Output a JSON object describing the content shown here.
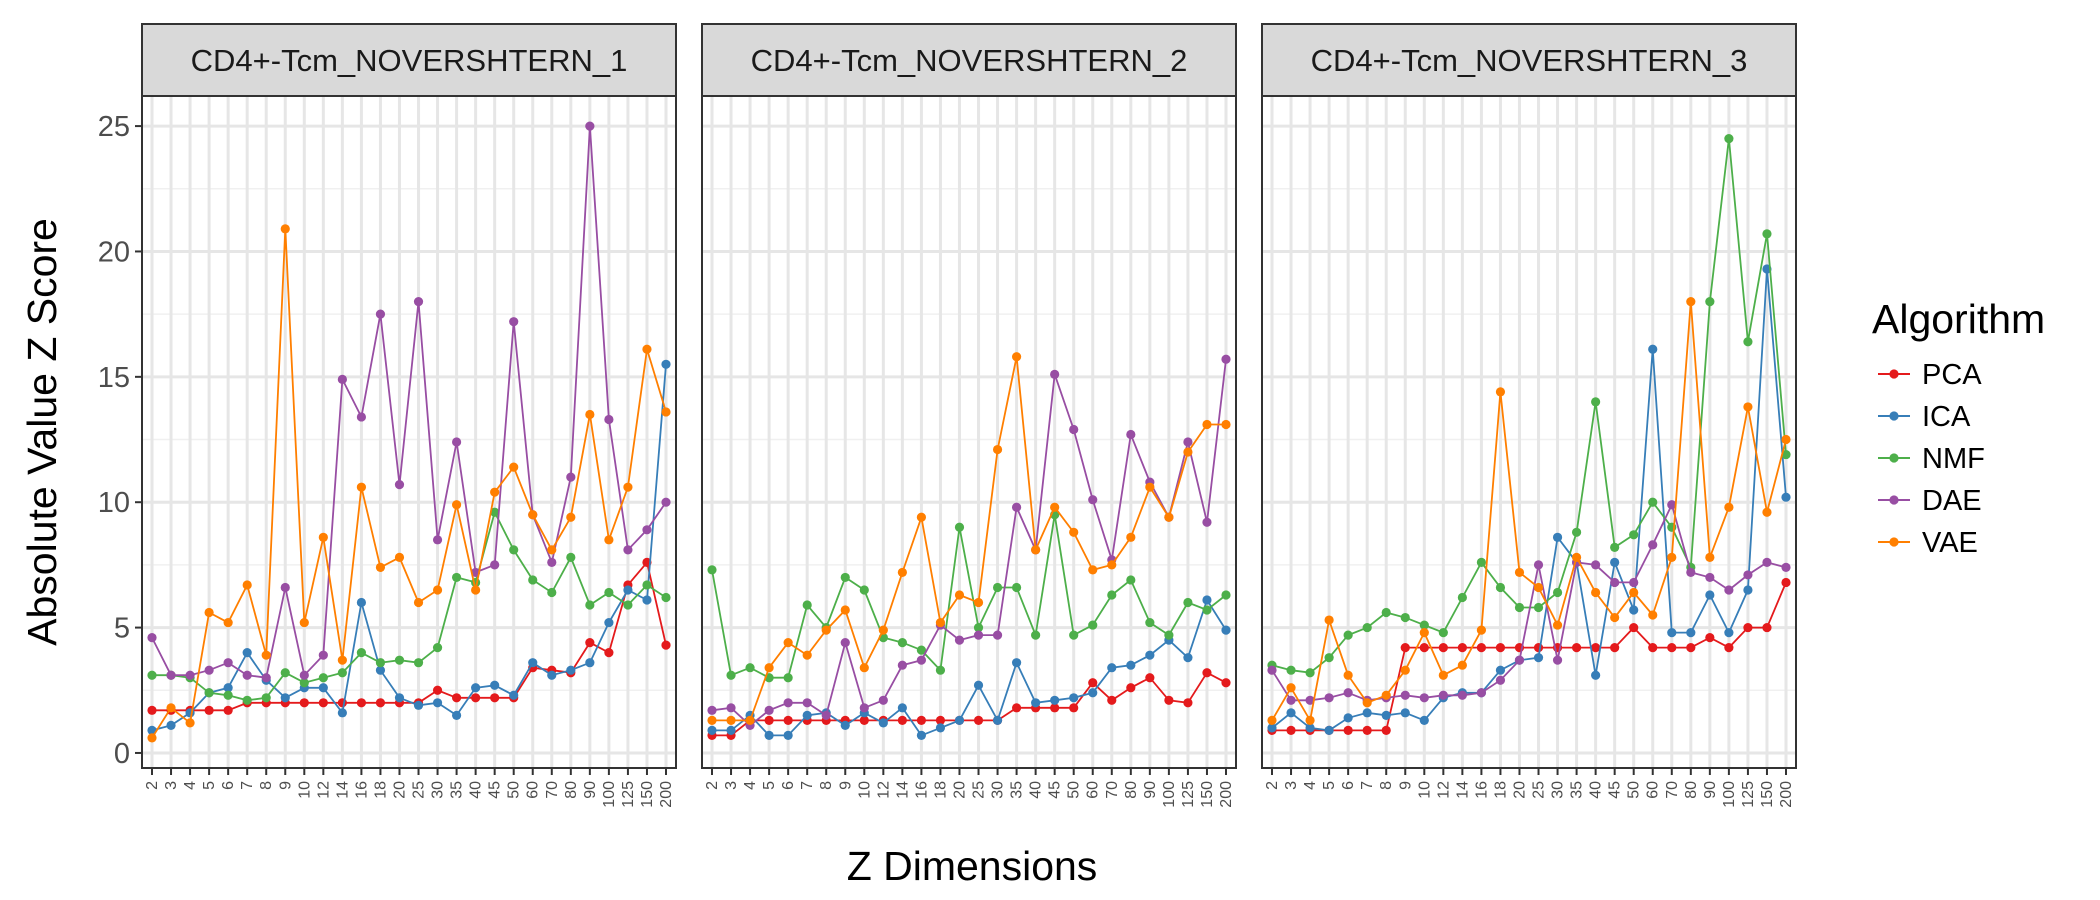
{
  "chart_data": {
    "type": "line",
    "ylabel": "Absolute Value Z Score",
    "xlabel": "Z Dimensions",
    "ylim": [
      -0.6,
      26.2
    ],
    "yticks": [
      0,
      5,
      10,
      15,
      20,
      25
    ],
    "grid": true,
    "legend_position": "right",
    "legend_title": "Algorithm",
    "categories": [
      "2",
      "3",
      "4",
      "5",
      "6",
      "7",
      "8",
      "9",
      "10",
      "12",
      "14",
      "16",
      "18",
      "20",
      "25",
      "30",
      "35",
      "40",
      "45",
      "50",
      "60",
      "70",
      "80",
      "90",
      "100",
      "125",
      "150",
      "200"
    ],
    "series_meta": [
      {
        "name": "PCA",
        "color": "#e41a1c"
      },
      {
        "name": "ICA",
        "color": "#377eb8"
      },
      {
        "name": "NMF",
        "color": "#4daf4a"
      },
      {
        "name": "DAE",
        "color": "#984ea3"
      },
      {
        "name": "VAE",
        "color": "#ff7f00"
      }
    ],
    "panels": [
      {
        "title": "CD4+-Tcm_NOVERSHTERN_1",
        "series": {
          "PCA": [
            1.7,
            1.7,
            1.7,
            1.7,
            1.7,
            2.0,
            2.0,
            2.0,
            2.0,
            2.0,
            2.0,
            2.0,
            2.0,
            2.0,
            2.0,
            2.5,
            2.2,
            2.2,
            2.2,
            2.2,
            3.4,
            3.3,
            3.2,
            4.4,
            4.0,
            6.7,
            7.6,
            4.3
          ],
          "ICA": [
            0.9,
            1.1,
            1.6,
            2.4,
            2.6,
            4.0,
            2.9,
            2.2,
            2.6,
            2.6,
            1.6,
            6.0,
            3.3,
            2.2,
            1.9,
            2.0,
            1.5,
            2.6,
            2.7,
            2.3,
            3.6,
            3.1,
            3.3,
            3.6,
            5.2,
            6.5,
            6.1,
            15.5
          ],
          "NMF": [
            3.1,
            3.1,
            3.0,
            2.4,
            2.3,
            2.1,
            2.2,
            3.2,
            2.8,
            3.0,
            3.2,
            4.0,
            3.6,
            3.7,
            3.6,
            4.2,
            7.0,
            6.8,
            9.6,
            8.1,
            6.9,
            6.4,
            7.8,
            5.9,
            6.4,
            5.9,
            6.7,
            6.2
          ],
          "DAE": [
            4.6,
            3.1,
            3.1,
            3.3,
            3.6,
            3.1,
            3.0,
            6.6,
            3.1,
            3.9,
            14.9,
            13.4,
            17.5,
            10.7,
            18.0,
            8.5,
            12.4,
            7.2,
            7.5,
            17.2,
            9.5,
            7.6,
            11.0,
            25.0,
            13.3,
            8.1,
            8.9,
            10.0
          ],
          "VAE": [
            0.6,
            1.8,
            1.2,
            5.6,
            5.2,
            6.7,
            3.9,
            20.9,
            5.2,
            8.6,
            3.7,
            10.6,
            7.4,
            7.8,
            6.0,
            6.5,
            9.9,
            6.5,
            10.4,
            11.4,
            9.5,
            8.1,
            9.4,
            13.5,
            8.5,
            10.6,
            16.1,
            13.6
          ]
        }
      },
      {
        "title": "CD4+-Tcm_NOVERSHTERN_2",
        "series": {
          "PCA": [
            0.7,
            0.7,
            1.3,
            1.3,
            1.3,
            1.3,
            1.3,
            1.3,
            1.3,
            1.3,
            1.3,
            1.3,
            1.3,
            1.3,
            1.3,
            1.3,
            1.8,
            1.8,
            1.8,
            1.8,
            2.8,
            2.1,
            2.6,
            3.0,
            2.1,
            2.0,
            3.2,
            2.8
          ],
          "ICA": [
            0.9,
            0.9,
            1.5,
            0.7,
            0.7,
            1.5,
            1.6,
            1.1,
            1.6,
            1.2,
            1.8,
            0.7,
            1.0,
            1.3,
            2.7,
            1.3,
            3.6,
            2.0,
            2.1,
            2.2,
            2.4,
            3.4,
            3.5,
            3.9,
            4.5,
            3.8,
            6.1,
            4.9
          ],
          "NMF": [
            7.3,
            3.1,
            3.4,
            3.0,
            3.0,
            5.9,
            5.0,
            7.0,
            6.5,
            4.6,
            4.4,
            4.1,
            3.3,
            9.0,
            5.0,
            6.6,
            6.6,
            4.7,
            9.5,
            4.7,
            5.1,
            6.3,
            6.9,
            5.2,
            4.7,
            6.0,
            5.7,
            6.3
          ],
          "DAE": [
            1.7,
            1.8,
            1.1,
            1.7,
            2.0,
            2.0,
            1.5,
            4.4,
            1.8,
            2.1,
            3.5,
            3.7,
            5.1,
            4.5,
            4.7,
            4.7,
            9.8,
            8.1,
            15.1,
            12.9,
            10.1,
            7.7,
            12.7,
            10.8,
            9.4,
            12.4,
            9.2,
            15.7
          ],
          "VAE": [
            1.3,
            1.3,
            1.3,
            3.4,
            4.4,
            3.9,
            4.9,
            5.7,
            3.4,
            4.9,
            7.2,
            9.4,
            5.2,
            6.3,
            6.0,
            12.1,
            15.8,
            8.1,
            9.8,
            8.8,
            7.3,
            7.5,
            8.6,
            10.6,
            9.4,
            12.0,
            13.1,
            13.1
          ]
        }
      },
      {
        "title": "CD4+-Tcm_NOVERSHTERN_3",
        "series": {
          "PCA": [
            0.9,
            0.9,
            0.9,
            0.9,
            0.9,
            0.9,
            0.9,
            4.2,
            4.2,
            4.2,
            4.2,
            4.2,
            4.2,
            4.2,
            4.2,
            4.2,
            4.2,
            4.2,
            4.2,
            5.0,
            4.2,
            4.2,
            4.2,
            4.6,
            4.2,
            5.0,
            5.0,
            6.8
          ],
          "ICA": [
            1.0,
            1.6,
            1.0,
            0.9,
            1.4,
            1.6,
            1.5,
            1.6,
            1.3,
            2.2,
            2.4,
            2.4,
            3.3,
            3.7,
            3.8,
            8.6,
            7.6,
            3.1,
            7.6,
            5.7,
            16.1,
            4.8,
            4.8,
            6.3,
            4.8,
            6.5,
            19.3,
            10.2
          ],
          "NMF": [
            3.5,
            3.3,
            3.2,
            3.8,
            4.7,
            5.0,
            5.6,
            5.4,
            5.1,
            4.8,
            6.2,
            7.6,
            6.6,
            5.8,
            5.8,
            6.4,
            8.8,
            14.0,
            8.2,
            8.7,
            10.0,
            9.0,
            7.4,
            18.0,
            24.5,
            16.4,
            20.7,
            11.9
          ],
          "DAE": [
            3.3,
            2.1,
            2.1,
            2.2,
            2.4,
            2.1,
            2.2,
            2.3,
            2.2,
            2.3,
            2.3,
            2.4,
            2.9,
            3.7,
            7.5,
            3.7,
            7.6,
            7.5,
            6.8,
            6.8,
            8.3,
            9.9,
            7.2,
            7.0,
            6.5,
            7.1,
            7.6,
            7.4
          ],
          "VAE": [
            1.3,
            2.6,
            1.3,
            5.3,
            3.1,
            2.0,
            2.3,
            3.3,
            4.8,
            3.1,
            3.5,
            4.9,
            14.4,
            7.2,
            6.6,
            5.1,
            7.8,
            6.4,
            5.4,
            6.4,
            5.5,
            7.8,
            18.0,
            7.8,
            9.8,
            13.8,
            9.6,
            12.5
          ]
        }
      }
    ]
  }
}
